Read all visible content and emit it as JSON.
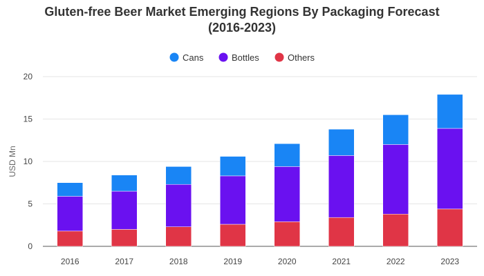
{
  "chart_data": {
    "type": "bar",
    "stacked": true,
    "title_line1": "Gluten-free Beer Market Emerging Regions By Packaging Forecast",
    "title_line2": "(2016-2023)",
    "xlabel": "",
    "ylabel": "USD Mn",
    "ylim": [
      0,
      20
    ],
    "yticks": [
      0,
      5,
      10,
      15,
      20
    ],
    "grid": true,
    "legend_position": "top-center",
    "categories": [
      "2016",
      "2017",
      "2018",
      "2019",
      "2020",
      "2021",
      "2022",
      "2023"
    ],
    "series": [
      {
        "name": "Others",
        "color": "#e03546",
        "values": [
          1.8,
          2.0,
          2.3,
          2.6,
          2.9,
          3.4,
          3.8,
          4.4
        ]
      },
      {
        "name": "Bottles",
        "color": "#6a11f0",
        "values": [
          4.1,
          4.5,
          5.0,
          5.7,
          6.5,
          7.3,
          8.2,
          9.5
        ]
      },
      {
        "name": "Cans",
        "color": "#1985f5",
        "values": [
          1.6,
          1.9,
          2.1,
          2.3,
          2.7,
          3.1,
          3.5,
          4.0
        ]
      }
    ],
    "legend_order": [
      "Cans",
      "Bottles",
      "Others"
    ]
  }
}
